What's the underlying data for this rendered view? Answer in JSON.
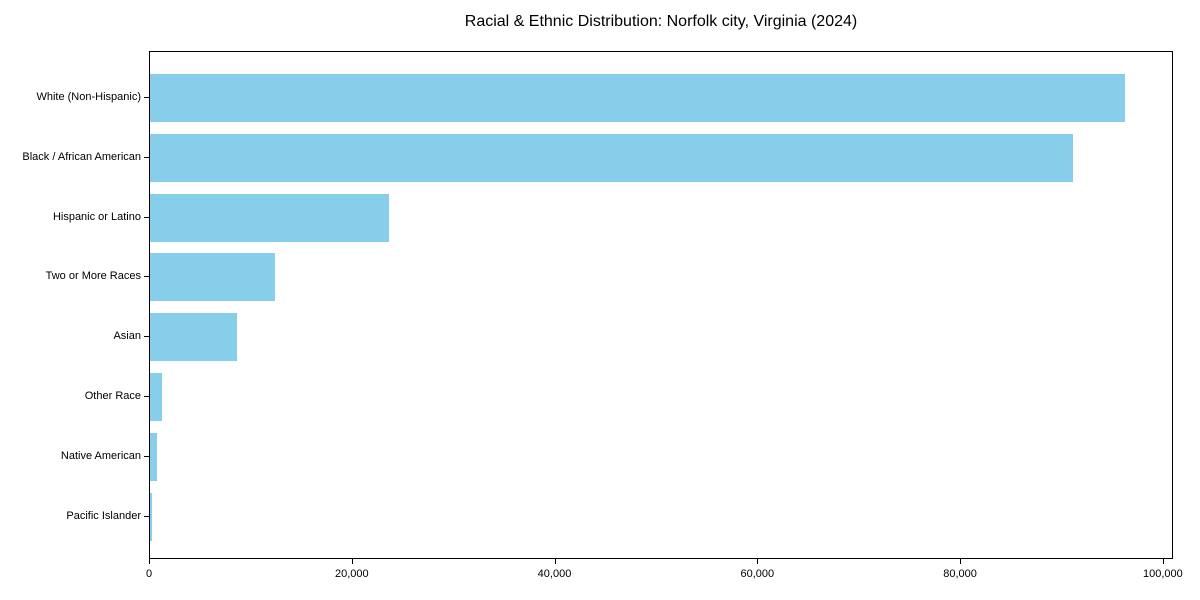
{
  "chart_data": {
    "type": "bar",
    "orientation": "horizontal",
    "title": "Racial & Ethnic Distribution: Norfolk city, Virginia (2024)",
    "categories": [
      "White (Non-Hispanic)",
      "Black / African American",
      "Hispanic or Latino",
      "Two or More Races",
      "Asian",
      "Other Race",
      "Native American",
      "Pacific Islander"
    ],
    "values": [
      96200,
      91000,
      23600,
      12300,
      8600,
      1200,
      700,
      150
    ],
    "xlabel": "",
    "ylabel": "",
    "xlim": [
      0,
      101000
    ],
    "xticks": [
      0,
      20000,
      40000,
      60000,
      80000,
      100000
    ],
    "xtick_labels": [
      "0",
      "20,000",
      "40,000",
      "60,000",
      "80,000",
      "100,000"
    ],
    "grid": false,
    "legend": false,
    "bar_color": "#87CEEB",
    "frame_color": "#000000",
    "text_color": "#000000",
    "background": "#FFFFFF"
  }
}
